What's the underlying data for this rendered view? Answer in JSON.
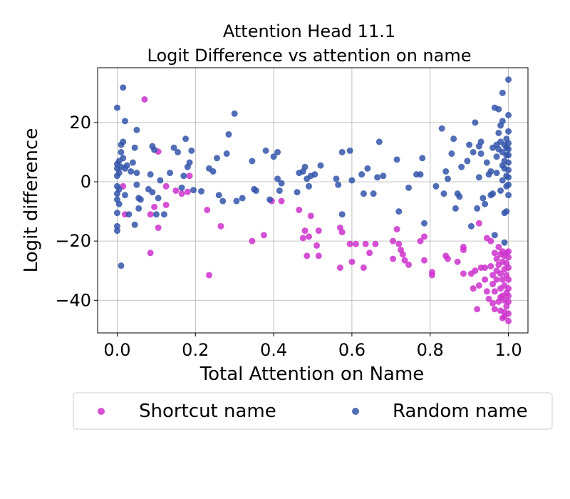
{
  "chart_data": {
    "type": "scatter",
    "title": "Attention Head 11.1",
    "subtitle": "Logit Difference vs attention on name",
    "xlabel": "Total Attention on Name",
    "ylabel": "Logit difference",
    "xlim": [
      -0.05,
      1.05
    ],
    "ylim": [
      -51,
      38.5
    ],
    "xticks": [
      0.0,
      0.2,
      0.4,
      0.6,
      0.8,
      1.0
    ],
    "xtick_labels": [
      "0.0",
      "0.2",
      "0.4",
      "0.6",
      "0.8",
      "1.0"
    ],
    "yticks": [
      -40,
      -20,
      0,
      20
    ],
    "ytick_labels": [
      "−40",
      "−20",
      "0",
      "20"
    ],
    "grid": true,
    "legend_position": "bottom, outside plot",
    "series": [
      {
        "name": "Shortcut name",
        "color": "#cc33cc",
        "points": [
          [
            0.07,
            27.8
          ],
          [
            0.015,
            -1.5
          ],
          [
            0.02,
            -11
          ],
          [
            0.085,
            -11
          ],
          [
            0.085,
            -24
          ],
          [
            0.095,
            -8.5
          ],
          [
            0.105,
            -15.5
          ],
          [
            0.105,
            10.2
          ],
          [
            0.125,
            -1.5
          ],
          [
            0.125,
            -7.8
          ],
          [
            0.15,
            -3
          ],
          [
            0.165,
            -4
          ],
          [
            0.18,
            -3.4
          ],
          [
            0.185,
            2
          ],
          [
            0.23,
            -9.5
          ],
          [
            0.235,
            -31.5
          ],
          [
            0.265,
            -15
          ],
          [
            0.345,
            -20
          ],
          [
            0.375,
            -18
          ],
          [
            0.395,
            -6.5
          ],
          [
            0.42,
            -6.5
          ],
          [
            0.465,
            -9.5
          ],
          [
            0.475,
            -19
          ],
          [
            0.48,
            -16.5
          ],
          [
            0.485,
            -25
          ],
          [
            0.49,
            -18.5
          ],
          [
            0.495,
            -11.5
          ],
          [
            0.51,
            -21.5
          ],
          [
            0.515,
            -16.5
          ],
          [
            0.515,
            -25
          ],
          [
            0.57,
            -15.5
          ],
          [
            0.57,
            -29
          ],
          [
            0.575,
            -17
          ],
          [
            0.595,
            -21
          ],
          [
            0.6,
            -27
          ],
          [
            0.61,
            -21
          ],
          [
            0.63,
            -29
          ],
          [
            0.635,
            -21
          ],
          [
            0.645,
            -24
          ],
          [
            0.66,
            -21
          ],
          [
            0.705,
            -20
          ],
          [
            0.705,
            -26
          ],
          [
            0.715,
            -16
          ],
          [
            0.72,
            -21
          ],
          [
            0.725,
            -23
          ],
          [
            0.73,
            -24.5
          ],
          [
            0.735,
            -26.5
          ],
          [
            0.745,
            -28
          ],
          [
            0.775,
            -20
          ],
          [
            0.785,
            -18.5
          ],
          [
            0.785,
            -26.5
          ],
          [
            0.805,
            -30.5
          ],
          [
            0.805,
            -31.5
          ],
          [
            0.84,
            -25
          ],
          [
            0.845,
            -26
          ],
          [
            0.87,
            -27
          ],
          [
            0.885,
            -22
          ],
          [
            0.885,
            -23
          ],
          [
            0.885,
            -31
          ],
          [
            0.905,
            -31
          ],
          [
            0.91,
            -36
          ],
          [
            0.915,
            -30
          ],
          [
            0.92,
            -43
          ],
          [
            0.925,
            -14
          ],
          [
            0.925,
            -35
          ],
          [
            0.93,
            -29
          ],
          [
            0.94,
            -29
          ],
          [
            0.94,
            -33
          ],
          [
            0.945,
            -19
          ],
          [
            0.945,
            -37
          ],
          [
            0.95,
            -39.5
          ],
          [
            0.955,
            -20
          ],
          [
            0.955,
            -28.5
          ],
          [
            0.96,
            -31.5
          ],
          [
            0.96,
            -34.5
          ],
          [
            0.96,
            -41
          ],
          [
            0.965,
            -24
          ],
          [
            0.965,
            -37
          ],
          [
            0.965,
            -43
          ],
          [
            0.97,
            -26
          ],
          [
            0.97,
            -33
          ],
          [
            0.975,
            -28
          ],
          [
            0.975,
            -40.5
          ],
          [
            0.98,
            -24.5
          ],
          [
            0.98,
            -31
          ],
          [
            0.98,
            -36
          ],
          [
            0.98,
            -43.5
          ],
          [
            0.985,
            -23.5
          ],
          [
            0.985,
            -27
          ],
          [
            0.985,
            -33
          ],
          [
            0.985,
            -38.5
          ],
          [
            0.99,
            -25
          ],
          [
            0.99,
            -29.5
          ],
          [
            0.99,
            -35
          ],
          [
            0.99,
            -40
          ],
          [
            0.99,
            -44
          ],
          [
            0.995,
            -24
          ],
          [
            0.995,
            -27.5
          ],
          [
            0.995,
            -31.5
          ],
          [
            0.995,
            -37.5
          ],
          [
            0.995,
            -42
          ],
          [
            1.0,
            -25.5
          ],
          [
            1.0,
            -29
          ],
          [
            1.0,
            -33
          ],
          [
            1.0,
            -36
          ],
          [
            1.0,
            -40.5
          ],
          [
            1.0,
            -44.5
          ],
          [
            1.0,
            -47
          ],
          [
            0.975,
            -22
          ],
          [
            0.99,
            -45.5
          ],
          [
            0.98,
            -39
          ],
          [
            0.97,
            -30
          ],
          [
            1.0,
            -23.5
          ],
          [
            1.0,
            -38.5
          ],
          [
            0.985,
            -46
          ]
        ]
      },
      {
        "name": "Random name",
        "color": "#3355aa",
        "points": [
          [
            0.0,
            25
          ],
          [
            0.0,
            -15
          ],
          [
            0.0,
            -10.5
          ],
          [
            0.0,
            -6
          ],
          [
            0.0,
            -4
          ],
          [
            0.0,
            -1.5
          ],
          [
            0.0,
            2
          ],
          [
            0.0,
            4.5
          ],
          [
            0.0,
            6
          ],
          [
            0.0,
            -16.5
          ],
          [
            0.005,
            7
          ],
          [
            0.005,
            3
          ],
          [
            0.005,
            -2.5
          ],
          [
            0.005,
            -7.5
          ],
          [
            0.01,
            12.5
          ],
          [
            0.01,
            10
          ],
          [
            0.01,
            5
          ],
          [
            0.01,
            -28.3
          ],
          [
            0.015,
            31.8
          ],
          [
            0.015,
            13.5
          ],
          [
            0.015,
            8
          ],
          [
            0.02,
            20.5
          ],
          [
            0.02,
            4.5
          ],
          [
            0.02,
            -4.5
          ],
          [
            0.025,
            5.5
          ],
          [
            0.03,
            -11
          ],
          [
            0.035,
            3.5
          ],
          [
            0.04,
            6.5
          ],
          [
            0.045,
            11.5
          ],
          [
            0.045,
            -14.5
          ],
          [
            0.05,
            -1
          ],
          [
            0.05,
            17.5
          ],
          [
            0.05,
            3
          ],
          [
            0.055,
            -5.5
          ],
          [
            0.055,
            -9
          ],
          [
            0.06,
            -6
          ],
          [
            0.08,
            -2.5
          ],
          [
            0.085,
            2.5
          ],
          [
            0.09,
            -3.5
          ],
          [
            0.09,
            12
          ],
          [
            0.095,
            10.8
          ],
          [
            0.1,
            -11
          ],
          [
            0.105,
            -5.5
          ],
          [
            0.11,
            0.5
          ],
          [
            0.12,
            -11
          ],
          [
            0.135,
            3
          ],
          [
            0.145,
            11.5
          ],
          [
            0.155,
            10
          ],
          [
            0.165,
            -2
          ],
          [
            0.17,
            2
          ],
          [
            0.175,
            14.5
          ],
          [
            0.18,
            5
          ],
          [
            0.185,
            6.5
          ],
          [
            0.19,
            10.5
          ],
          [
            0.195,
            -2.8
          ],
          [
            0.215,
            -3.2
          ],
          [
            0.235,
            4.5
          ],
          [
            0.245,
            3.5
          ],
          [
            0.255,
            8
          ],
          [
            0.26,
            -4.5
          ],
          [
            0.27,
            -6.5
          ],
          [
            0.28,
            9.5
          ],
          [
            0.285,
            16
          ],
          [
            0.3,
            23
          ],
          [
            0.305,
            -6.5
          ],
          [
            0.32,
            -5.5
          ],
          [
            0.345,
            7
          ],
          [
            0.35,
            -2.5
          ],
          [
            0.355,
            -3
          ],
          [
            0.38,
            10.5
          ],
          [
            0.39,
            -6
          ],
          [
            0.4,
            8.5
          ],
          [
            0.41,
            10
          ],
          [
            0.41,
            1
          ],
          [
            0.415,
            -3
          ],
          [
            0.42,
            -0.5
          ],
          [
            0.46,
            -3.5
          ],
          [
            0.465,
            3
          ],
          [
            0.475,
            3.5
          ],
          [
            0.48,
            5
          ],
          [
            0.485,
            1
          ],
          [
            0.49,
            -1.5
          ],
          [
            0.495,
            2
          ],
          [
            0.505,
            2.5
          ],
          [
            0.52,
            5.5
          ],
          [
            0.56,
            1
          ],
          [
            0.565,
            -1
          ],
          [
            0.575,
            10
          ],
          [
            0.575,
            -11
          ],
          [
            0.595,
            10.5
          ],
          [
            0.6,
            0.5
          ],
          [
            0.625,
            2.5
          ],
          [
            0.63,
            -4
          ],
          [
            0.64,
            4.5
          ],
          [
            0.655,
            -4
          ],
          [
            0.665,
            1.5
          ],
          [
            0.67,
            13.5
          ],
          [
            0.68,
            2
          ],
          [
            0.715,
            7.5
          ],
          [
            0.72,
            -10
          ],
          [
            0.745,
            -2
          ],
          [
            0.765,
            2.5
          ],
          [
            0.775,
            2.5
          ],
          [
            0.78,
            8
          ],
          [
            0.785,
            -14
          ],
          [
            0.815,
            -1.5
          ],
          [
            0.83,
            18
          ],
          [
            0.835,
            -4
          ],
          [
            0.84,
            3.5
          ],
          [
            0.845,
            1
          ],
          [
            0.855,
            9.5
          ],
          [
            0.86,
            14.5
          ],
          [
            0.865,
            -9
          ],
          [
            0.87,
            -4
          ],
          [
            0.875,
            -5
          ],
          [
            0.88,
            5
          ],
          [
            0.895,
            7
          ],
          [
            0.9,
            12.5
          ],
          [
            0.905,
            -15
          ],
          [
            0.91,
            10
          ],
          [
            0.915,
            20
          ],
          [
            0.92,
            -9
          ],
          [
            0.925,
            12
          ],
          [
            0.925,
            1.5
          ],
          [
            0.93,
            9.5
          ],
          [
            0.93,
            13.5
          ],
          [
            0.935,
            -5.5
          ],
          [
            0.94,
            -7.5
          ],
          [
            0.945,
            6.5
          ],
          [
            0.95,
            2.5
          ],
          [
            0.955,
            -4.5
          ],
          [
            0.955,
            3.5
          ],
          [
            0.96,
            11.5
          ],
          [
            0.96,
            -4
          ],
          [
            0.965,
            25
          ],
          [
            0.965,
            -18
          ],
          [
            0.97,
            12.5
          ],
          [
            0.97,
            8.5
          ],
          [
            0.975,
            16.5
          ],
          [
            0.975,
            24.5
          ],
          [
            0.98,
            13.5
          ],
          [
            0.98,
            19
          ],
          [
            0.985,
            30
          ],
          [
            0.985,
            10
          ],
          [
            0.985,
            5.5
          ],
          [
            0.99,
            12.5
          ],
          [
            0.99,
            -10.5
          ],
          [
            0.99,
            -20.5
          ],
          [
            0.995,
            2
          ],
          [
            0.995,
            9
          ],
          [
            0.995,
            11.5
          ],
          [
            0.995,
            -10
          ],
          [
            1.0,
            34.5
          ],
          [
            1.0,
            22.5
          ],
          [
            1.0,
            17
          ],
          [
            1.0,
            13
          ],
          [
            1.0,
            11
          ],
          [
            1.0,
            9
          ],
          [
            1.0,
            6.5
          ],
          [
            1.0,
            4
          ],
          [
            1.0,
            1.5
          ],
          [
            1.0,
            -1
          ],
          [
            1.0,
            -4.5
          ],
          [
            0.99,
            4.5
          ],
          [
            0.99,
            7
          ],
          [
            0.985,
            0.5
          ],
          [
            0.975,
            11
          ],
          [
            0.98,
            -3
          ],
          [
            0.97,
            3
          ],
          [
            0.995,
            14.5
          ],
          [
            0.995,
            -1.5
          ],
          [
            0.985,
            20.5
          ]
        ]
      }
    ]
  }
}
